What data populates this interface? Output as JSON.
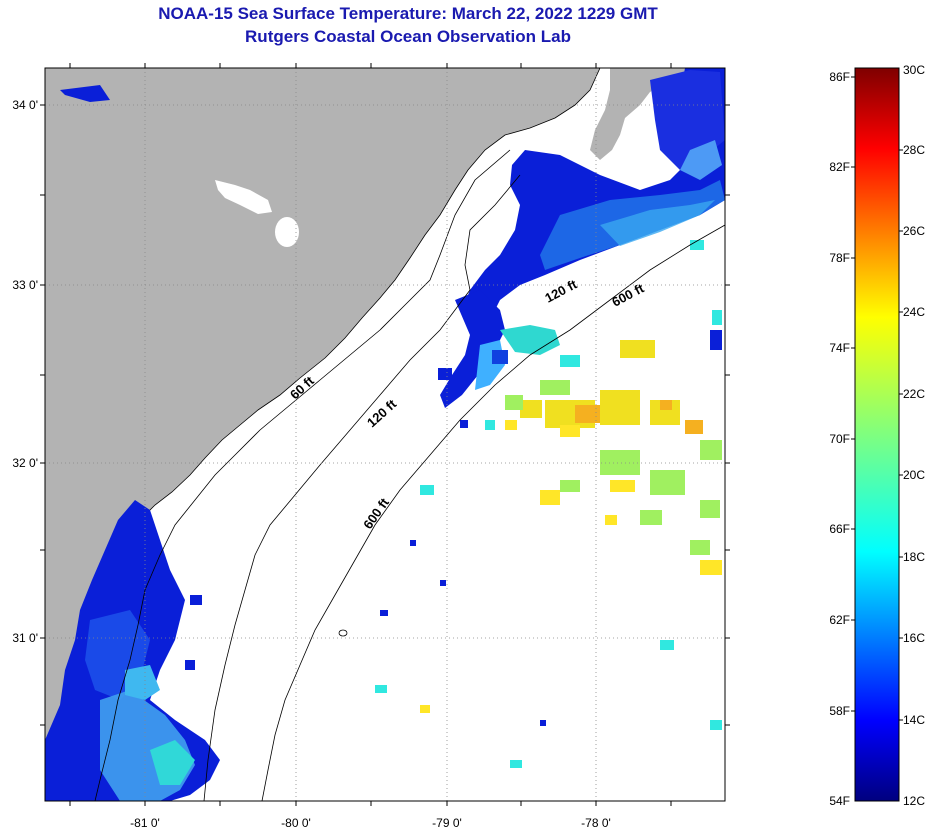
{
  "header": {
    "title": "NOAA-15 Sea Surface Temperature:  March 22, 2022 1229 GMT",
    "subtitle": "Rutgers Coastal Ocean Observation Lab"
  },
  "map": {
    "lat_labels": [
      "34 0'",
      "33 0'",
      "32 0'",
      "31 0'"
    ],
    "lon_labels": [
      "-81 0'",
      "-80 0'",
      "-79 0'",
      "-78 0'"
    ],
    "isobaths": [
      "60 ft",
      "120 ft",
      "600 ft",
      "120 ft",
      "600 ft"
    ],
    "colors": {
      "land": "#b3b3b3",
      "ocean_no_data": "#ffffff",
      "grid": "#888888"
    }
  },
  "colorbar": {
    "fahrenheit": [
      "86F",
      "82F",
      "78F",
      "74F",
      "70F",
      "66F",
      "62F",
      "58F",
      "54F"
    ],
    "celsius": [
      "30C",
      "28C",
      "26C",
      "24C",
      "22C",
      "20C",
      "18C",
      "16C",
      "14C",
      "12C"
    ]
  }
}
